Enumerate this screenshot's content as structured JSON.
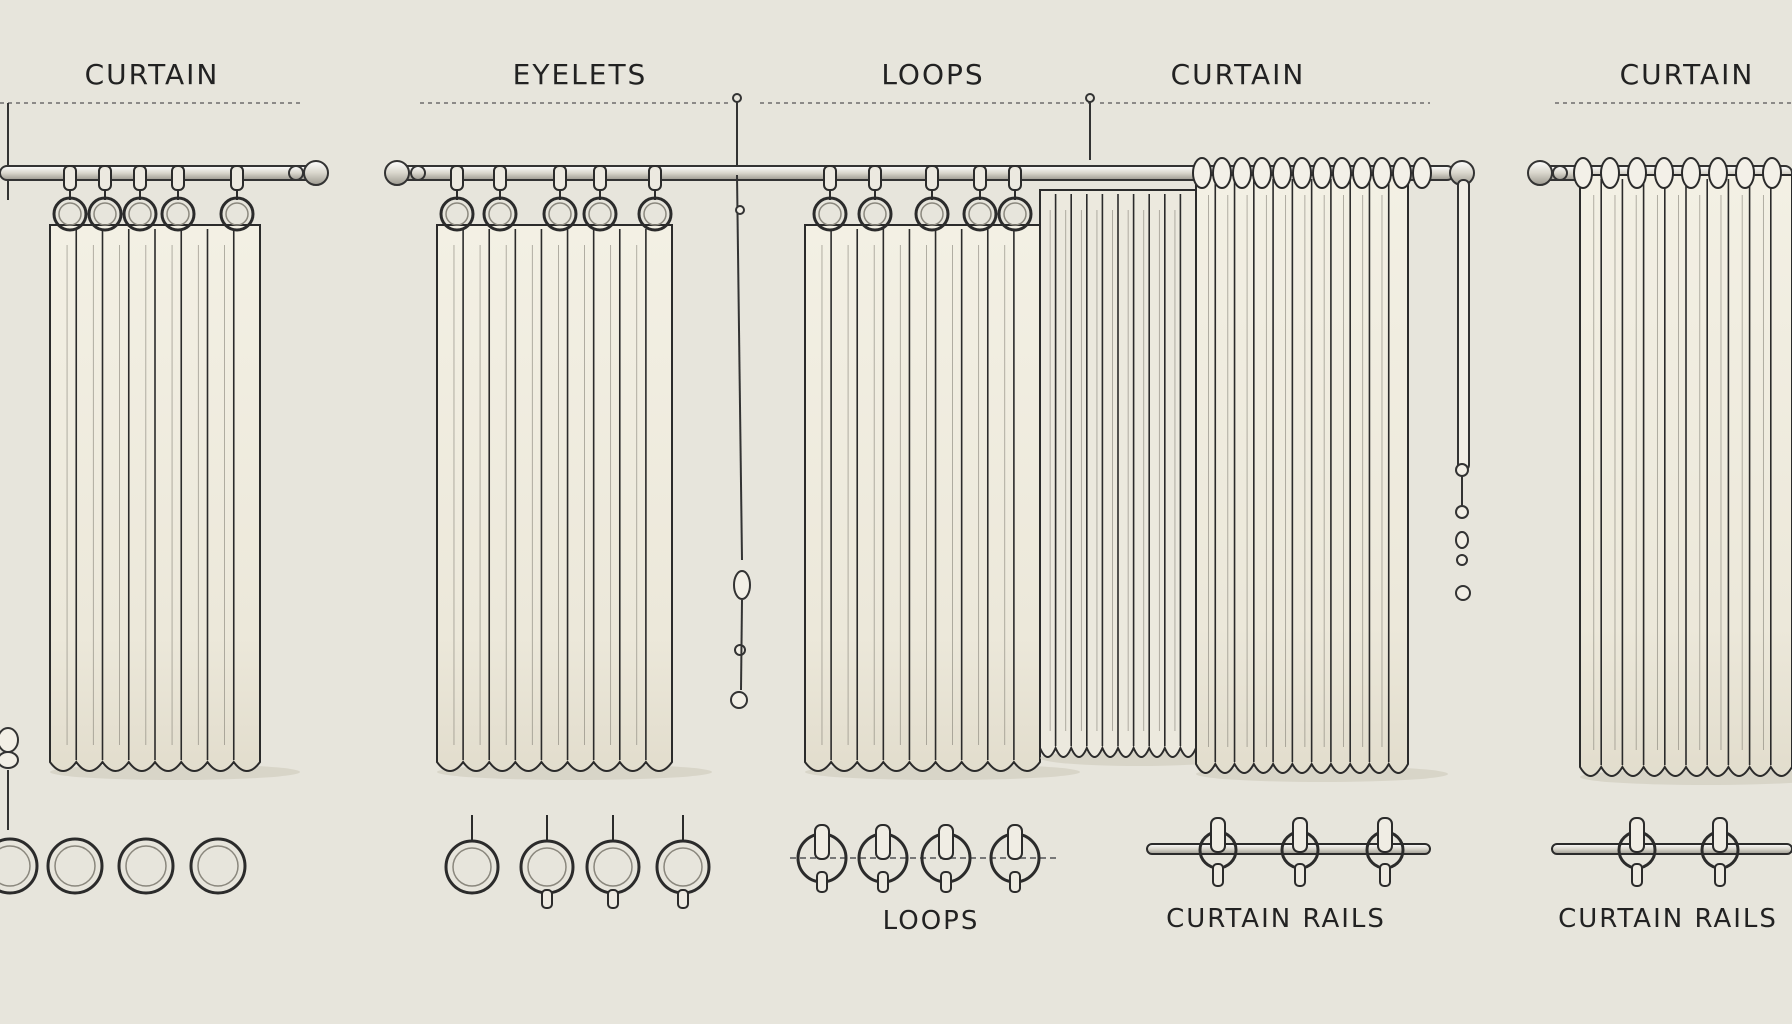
{
  "top_labels": {
    "curtain_1": "CURTAIN",
    "eyelets": "EYELETS",
    "loops": "LOOPS",
    "curtain_2": "CURTAIN",
    "curtain_3": "CURTAIN"
  },
  "bottom_labels": {
    "loops": "LOOPS",
    "curtain_rails_1": "CURTAIN RAILS",
    "curtain_rails_2": "CURTAIN RAILS"
  },
  "colors": {
    "background": "#e7e5dc",
    "fabric": "#f1eee2",
    "line": "#2b2b2b",
    "shadow": "#cfcabb"
  }
}
